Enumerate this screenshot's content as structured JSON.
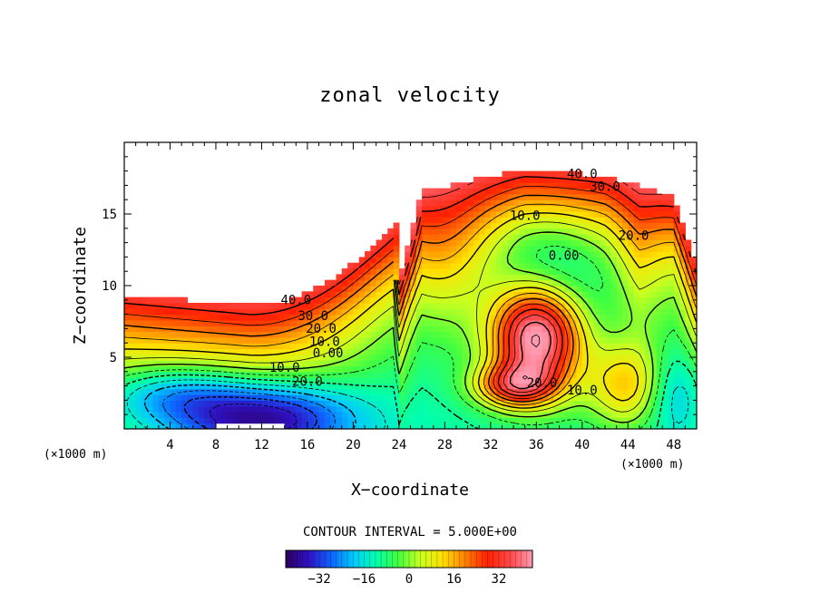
{
  "chart_data": {
    "type": "heatmap",
    "title": "zonal velocity",
    "xlabel": "X−coordinate",
    "ylabel": "Z−coordinate",
    "x_unit": "(×1000 m)",
    "z_unit": "(×1000 m)",
    "xlim": [
      0,
      50
    ],
    "ylim": [
      0,
      20
    ],
    "x_ticks": [
      4,
      8,
      12,
      16,
      20,
      24,
      28,
      32,
      36,
      40,
      44,
      48
    ],
    "x_tick_labels": [
      "4",
      "8",
      "12",
      "16",
      "20",
      "24",
      "28",
      "32",
      "36",
      "40",
      "44",
      "48"
    ],
    "y_ticks": [
      5,
      10,
      15
    ],
    "y_tick_labels": [
      "5",
      "10",
      "15"
    ],
    "contour_labels": [
      {
        "text": "40.0",
        "x": 15,
        "z": 8.7
      },
      {
        "text": "30.0",
        "x": 16.5,
        "z": 7.6
      },
      {
        "text": "20.0",
        "x": 17.2,
        "z": 6.7
      },
      {
        "text": "10.0",
        "x": 17.5,
        "z": 5.8
      },
      {
        "text": "0.00",
        "x": 17.8,
        "z": 5.0
      },
      {
        "text": "10.0",
        "x": 14,
        "z": 4.0
      },
      {
        "text": "20.0",
        "x": 16,
        "z": 3.0
      },
      {
        "text": "40.0",
        "x": 40,
        "z": 17.5
      },
      {
        "text": "30.0",
        "x": 42,
        "z": 16.6
      },
      {
        "text": "10.0",
        "x": 35,
        "z": 14.6
      },
      {
        "text": "0.00",
        "x": 38.4,
        "z": 11.8
      },
      {
        "text": "20.0",
        "x": 44.5,
        "z": 13.2
      },
      {
        "text": "20.0",
        "x": 36.5,
        "z": 2.9
      },
      {
        "text": "10.0",
        "x": 40,
        "z": 2.4
      }
    ],
    "contour_interval_text": "CONTOUR INTERVAL = 5.000E+00",
    "colorbar": {
      "min": -44,
      "max": 44,
      "ticks": [
        -32,
        -16,
        0,
        16,
        32
      ],
      "tick_labels": [
        "−32",
        "−16",
        "0",
        "16",
        "32"
      ]
    },
    "colormap": [
      "#2a0060",
      "#3010c0",
      "#1060ff",
      "#00c8ff",
      "#00ffb0",
      "#40ff40",
      "#c8ff20",
      "#ffe000",
      "#ff8000",
      "#ff2000",
      "#ff4848",
      "#ff9ab0"
    ]
  }
}
